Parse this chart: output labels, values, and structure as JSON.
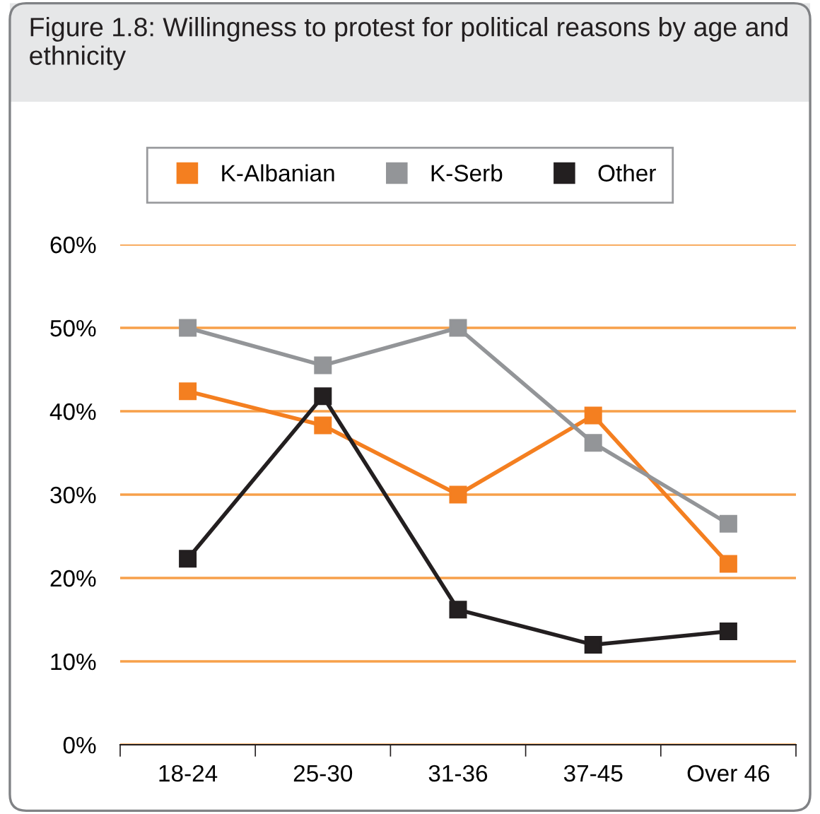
{
  "chart_data": {
    "type": "line",
    "title": "Figure 1.8: Willingness to protest for political reasons by age and ethnicity",
    "categories": [
      "18-24",
      "25-30",
      "31-36",
      "37-45",
      "Over 46"
    ],
    "series": [
      {
        "name": "K-Albanian",
        "color": "#f47f20",
        "values": [
          42.4,
          38.3,
          30.0,
          39.5,
          21.7
        ]
      },
      {
        "name": "K-Serb",
        "color": "#939598",
        "values": [
          50.0,
          45.5,
          50.0,
          36.2,
          26.5
        ]
      },
      {
        "name": "Other",
        "color": "#231f20",
        "values": [
          22.3,
          41.8,
          16.2,
          12.0,
          13.6
        ]
      }
    ],
    "ylim": [
      0,
      60
    ],
    "yticks": [
      {
        "value": 0,
        "label": "0%"
      },
      {
        "value": 10,
        "label": "10%"
      },
      {
        "value": 20,
        "label": "20%"
      },
      {
        "value": 30,
        "label": "30%"
      },
      {
        "value": 40,
        "label": "40%"
      },
      {
        "value": 50,
        "label": "50%"
      },
      {
        "value": 60,
        "label": "60%"
      }
    ],
    "grid": "y",
    "legend": "top",
    "marker": "square",
    "line_style": "solid"
  }
}
